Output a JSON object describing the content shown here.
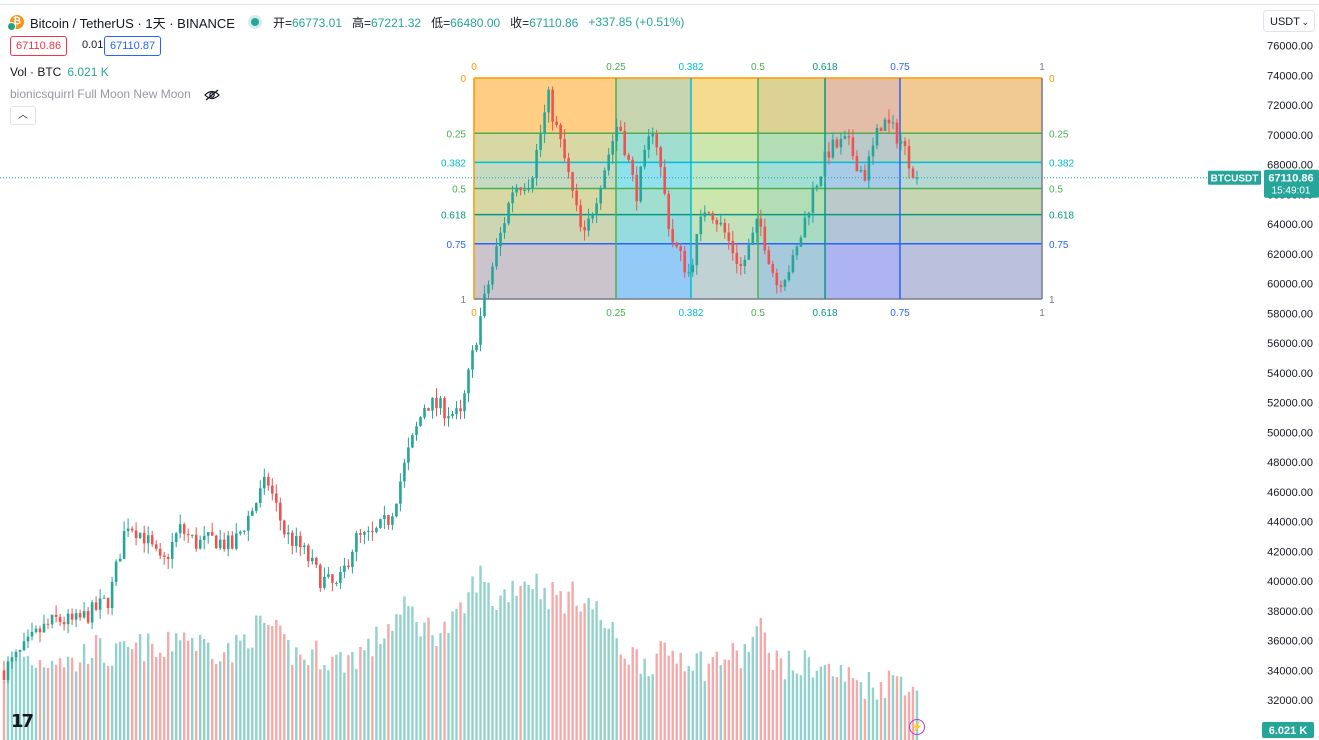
{
  "header": {
    "symbol": "Bitcoin / TetherUS · 1天 · BINANCE",
    "open_label": "开=",
    "open": "66773.01",
    "high_label": "高=",
    "high": "67221.32",
    "low_label": "低=",
    "low": "66480.00",
    "close_label": "收=",
    "close": "67110.86",
    "change": "+337.85 (+0.51%)"
  },
  "trade": {
    "bid": "67110.86",
    "spread": "0.01",
    "ask": "67110.87"
  },
  "volume_legend": {
    "label": "Vol · BTC",
    "value": "6.021 K"
  },
  "indicator_legend": {
    "label": "bionicsquirrl Full Moon New Moon"
  },
  "currency": "USDT",
  "price_tag": {
    "symbol": "BTCUSDT",
    "price": "67110.86",
    "countdown": "15:49:01"
  },
  "volume_tag": "6.021 K",
  "colors": {
    "up": "#26a69a",
    "down": "#ef5350",
    "fib_0": "#ff9800",
    "fib_025": "#4caf50",
    "fib_0382": "#00bcd4",
    "fib_05": "#4caf50",
    "fib_0618": "#089981",
    "fib_075": "#2962ff",
    "fib_1": "#787b86"
  },
  "chart_data": {
    "type": "candlestick",
    "title": "Bitcoin / TetherUS · 1天 · BINANCE",
    "y_axis": {
      "ticks": [
        32000,
        34000,
        36000,
        38000,
        40000,
        42000,
        44000,
        46000,
        48000,
        50000,
        52000,
        54000,
        56000,
        58000,
        60000,
        62000,
        64000,
        66000,
        68000,
        70000,
        72000,
        74000,
        76000
      ],
      "tick_labels": [
        "32000.00",
        "34000.00",
        "36000.00",
        "38000.00",
        "40000.00",
        "42000.00",
        "44000.00",
        "46000.00",
        "48000.00",
        "50000.00",
        "52000.00",
        "54000.00",
        "56000.00",
        "58000.00",
        "60000.00",
        "62000.00",
        "64000.00",
        "66000.00",
        "68000.00",
        "70000.00",
        "72000.00",
        "74000.00",
        "76000.00"
      ],
      "range": [
        31500,
        77000
      ]
    },
    "last_price": 67110.86,
    "close_path": [
      34000,
      35200,
      36600,
      37400,
      37200,
      37900,
      38800,
      44000,
      43000,
      41000,
      43500,
      42500,
      42800,
      42300,
      44500,
      46800,
      43200,
      42100,
      40200,
      39500,
      42800,
      43000,
      44300,
      48500,
      52000,
      51600,
      51000,
      57000,
      62000,
      66500,
      67000,
      72500,
      68000,
      62800,
      67000,
      71000,
      66000,
      70800,
      63000,
      60700,
      65500,
      63500,
      61000,
      64200,
      60000,
      61500,
      66000,
      69000,
      69500,
      67200,
      71000,
      69800,
      67110.86
    ],
    "volume_estimate": [
      33500,
      34600,
      34200,
      34800,
      34000,
      35300,
      34500,
      34800,
      35300,
      34500,
      36400,
      35500,
      35200,
      34800,
      36200,
      36800,
      35200,
      34500,
      34800,
      34200,
      34700,
      35300,
      36800,
      37800,
      36500,
      36300,
      37200,
      40200,
      38200,
      39400,
      39900,
      38800,
      38500,
      38700,
      37200,
      35300,
      34500,
      34300,
      34900,
      34600,
      34000,
      34600,
      34500,
      36500,
      34300,
      33800,
      34200,
      33600,
      33200,
      32800,
      32700,
      33300,
      32500
    ],
    "volume_last": "6.021 K",
    "fib_retracement": {
      "levels": [
        0,
        0.25,
        0.382,
        0.5,
        0.618,
        0.75,
        1
      ],
      "labels": [
        "0",
        "0.25",
        "0.382",
        "0.5",
        "0.618",
        "0.75",
        "1"
      ],
      "price_top": 73700,
      "price_bottom": 59000
    },
    "fib_time_zones": {
      "levels": [
        0,
        0.25,
        0.382,
        0.5,
        0.618,
        0.75,
        1
      ],
      "labels": [
        "0",
        "0.25",
        "0.382",
        "0.5",
        "0.618",
        "0.75",
        "1"
      ]
    }
  }
}
